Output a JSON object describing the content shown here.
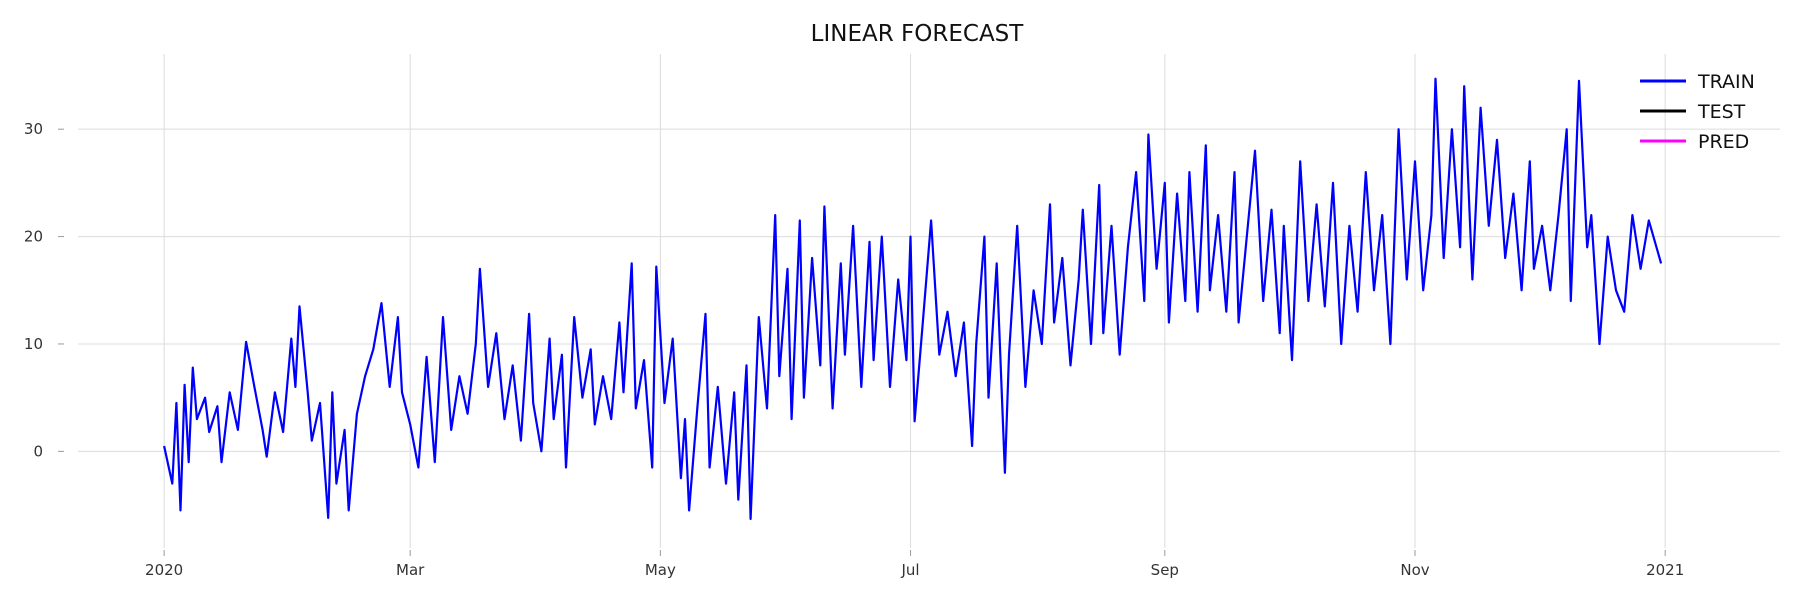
{
  "chart_data": {
    "type": "line",
    "title": "LINEAR FORECAST",
    "xlabel": "",
    "ylabel": "",
    "x_axis": {
      "type": "date",
      "range": [
        "2019-12-11",
        "2021-01-29"
      ],
      "ticks": [
        {
          "date": "2020-01-01",
          "label": "2020"
        },
        {
          "date": "2020-03-01",
          "label": "Mar"
        },
        {
          "date": "2020-05-01",
          "label": "May"
        },
        {
          "date": "2020-07-01",
          "label": "Jul"
        },
        {
          "date": "2020-09-01",
          "label": "Sep"
        },
        {
          "date": "2020-11-01",
          "label": "Nov"
        },
        {
          "date": "2021-01-01",
          "label": "2021"
        }
      ]
    },
    "y_axis": {
      "range": [
        -9,
        37
      ],
      "ticks": [
        0,
        10,
        20,
        30
      ]
    },
    "grid": true,
    "legend": {
      "position": "top-right"
    },
    "series": [
      {
        "name": "TRAIN",
        "color": "#0000ff",
        "points": [
          [
            "2020-01-01",
            0.5
          ],
          [
            "2020-01-03",
            -3
          ],
          [
            "2020-01-04",
            4.5
          ],
          [
            "2020-01-05",
            -5.5
          ],
          [
            "2020-01-06",
            6.2
          ],
          [
            "2020-01-07",
            -1
          ],
          [
            "2020-01-08",
            7.8
          ],
          [
            "2020-01-09",
            3
          ],
          [
            "2020-01-11",
            5
          ],
          [
            "2020-01-12",
            1.8
          ],
          [
            "2020-01-14",
            4.2
          ],
          [
            "2020-01-15",
            -1
          ],
          [
            "2020-01-17",
            5.5
          ],
          [
            "2020-01-19",
            2
          ],
          [
            "2020-01-21",
            10.2
          ],
          [
            "2020-01-23",
            6
          ],
          [
            "2020-01-25",
            2
          ],
          [
            "2020-01-26",
            -0.5
          ],
          [
            "2020-01-28",
            5.5
          ],
          [
            "2020-01-30",
            1.8
          ],
          [
            "2020-02-01",
            10.5
          ],
          [
            "2020-02-02",
            6
          ],
          [
            "2020-02-03",
            13.5
          ],
          [
            "2020-02-05",
            5.5
          ],
          [
            "2020-02-06",
            1
          ],
          [
            "2020-02-08",
            4.5
          ],
          [
            "2020-02-10",
            -6.2
          ],
          [
            "2020-02-11",
            5.5
          ],
          [
            "2020-02-12",
            -3
          ],
          [
            "2020-02-14",
            2
          ],
          [
            "2020-02-15",
            -5.5
          ],
          [
            "2020-02-17",
            3.5
          ],
          [
            "2020-02-19",
            7
          ],
          [
            "2020-02-21",
            9.5
          ],
          [
            "2020-02-23",
            13.8
          ],
          [
            "2020-02-25",
            6
          ],
          [
            "2020-02-27",
            12.5
          ],
          [
            "2020-02-28",
            5.5
          ],
          [
            "2020-03-01",
            2.5
          ],
          [
            "2020-03-03",
            -1.5
          ],
          [
            "2020-03-05",
            8.8
          ],
          [
            "2020-03-07",
            -1
          ],
          [
            "2020-03-09",
            12.5
          ],
          [
            "2020-03-11",
            2
          ],
          [
            "2020-03-13",
            7
          ],
          [
            "2020-03-15",
            3.5
          ],
          [
            "2020-03-17",
            10
          ],
          [
            "2020-03-18",
            17
          ],
          [
            "2020-03-20",
            6
          ],
          [
            "2020-03-22",
            11
          ],
          [
            "2020-03-24",
            3
          ],
          [
            "2020-03-26",
            8
          ],
          [
            "2020-03-28",
            1
          ],
          [
            "2020-03-30",
            12.8
          ],
          [
            "2020-03-31",
            4.5
          ],
          [
            "2020-04-02",
            0
          ],
          [
            "2020-04-04",
            10.5
          ],
          [
            "2020-04-05",
            3
          ],
          [
            "2020-04-07",
            9
          ],
          [
            "2020-04-08",
            -1.5
          ],
          [
            "2020-04-10",
            12.5
          ],
          [
            "2020-04-12",
            5
          ],
          [
            "2020-04-14",
            9.5
          ],
          [
            "2020-04-15",
            2.5
          ],
          [
            "2020-04-17",
            7
          ],
          [
            "2020-04-19",
            3
          ],
          [
            "2020-04-21",
            12
          ],
          [
            "2020-04-22",
            5.5
          ],
          [
            "2020-04-24",
            17.5
          ],
          [
            "2020-04-25",
            4
          ],
          [
            "2020-04-27",
            8.5
          ],
          [
            "2020-04-29",
            -1.5
          ],
          [
            "2020-04-30",
            17.2
          ],
          [
            "2020-05-02",
            4.5
          ],
          [
            "2020-05-04",
            10.5
          ],
          [
            "2020-05-06",
            -2.5
          ],
          [
            "2020-05-07",
            3
          ],
          [
            "2020-05-08",
            -5.5
          ],
          [
            "2020-05-10",
            4
          ],
          [
            "2020-05-12",
            12.8
          ],
          [
            "2020-05-13",
            -1.5
          ],
          [
            "2020-05-15",
            6
          ],
          [
            "2020-05-17",
            -3
          ],
          [
            "2020-05-19",
            5.5
          ],
          [
            "2020-05-20",
            -4.5
          ],
          [
            "2020-05-22",
            8
          ],
          [
            "2020-05-23",
            -6.3
          ],
          [
            "2020-05-25",
            12.5
          ],
          [
            "2020-05-27",
            4
          ],
          [
            "2020-05-29",
            22
          ],
          [
            "2020-05-30",
            7
          ],
          [
            "2020-06-01",
            17
          ],
          [
            "2020-06-02",
            3
          ],
          [
            "2020-06-04",
            21.5
          ],
          [
            "2020-06-05",
            5
          ],
          [
            "2020-06-07",
            18
          ],
          [
            "2020-06-09",
            8
          ],
          [
            "2020-06-10",
            22.8
          ],
          [
            "2020-06-12",
            4
          ],
          [
            "2020-06-14",
            17.5
          ],
          [
            "2020-06-15",
            9
          ],
          [
            "2020-06-17",
            21
          ],
          [
            "2020-06-19",
            6
          ],
          [
            "2020-06-21",
            19.5
          ],
          [
            "2020-06-22",
            8.5
          ],
          [
            "2020-06-24",
            20
          ],
          [
            "2020-06-26",
            6
          ],
          [
            "2020-06-28",
            16
          ],
          [
            "2020-06-30",
            8.5
          ],
          [
            "2020-07-01",
            20
          ],
          [
            "2020-07-02",
            2.8
          ],
          [
            "2020-07-04",
            12
          ],
          [
            "2020-07-06",
            21.5
          ],
          [
            "2020-07-08",
            9
          ],
          [
            "2020-07-10",
            13
          ],
          [
            "2020-07-12",
            7
          ],
          [
            "2020-07-14",
            12
          ],
          [
            "2020-07-16",
            0.5
          ],
          [
            "2020-07-17",
            10
          ],
          [
            "2020-07-19",
            20
          ],
          [
            "2020-07-20",
            5
          ],
          [
            "2020-07-22",
            17.5
          ],
          [
            "2020-07-24",
            -2
          ],
          [
            "2020-07-25",
            9
          ],
          [
            "2020-07-27",
            21
          ],
          [
            "2020-07-29",
            6
          ],
          [
            "2020-07-31",
            15
          ],
          [
            "2020-08-02",
            10
          ],
          [
            "2020-08-04",
            23
          ],
          [
            "2020-08-05",
            12
          ],
          [
            "2020-08-07",
            18
          ],
          [
            "2020-08-09",
            8
          ],
          [
            "2020-08-11",
            16
          ],
          [
            "2020-08-12",
            22.5
          ],
          [
            "2020-08-14",
            10
          ],
          [
            "2020-08-16",
            24.8
          ],
          [
            "2020-08-17",
            11
          ],
          [
            "2020-08-19",
            21
          ],
          [
            "2020-08-21",
            9
          ],
          [
            "2020-08-23",
            19
          ],
          [
            "2020-08-25",
            26
          ],
          [
            "2020-08-27",
            14
          ],
          [
            "2020-08-28",
            29.5
          ],
          [
            "2020-08-30",
            17
          ],
          [
            "2020-09-01",
            25
          ],
          [
            "2020-09-02",
            12
          ],
          [
            "2020-09-04",
            24
          ],
          [
            "2020-09-06",
            14
          ],
          [
            "2020-09-07",
            26
          ],
          [
            "2020-09-09",
            13
          ],
          [
            "2020-09-11",
            28.5
          ],
          [
            "2020-09-12",
            15
          ],
          [
            "2020-09-14",
            22
          ],
          [
            "2020-09-16",
            13
          ],
          [
            "2020-09-18",
            26
          ],
          [
            "2020-09-19",
            12
          ],
          [
            "2020-09-21",
            20
          ],
          [
            "2020-09-23",
            28
          ],
          [
            "2020-09-25",
            14
          ],
          [
            "2020-09-27",
            22.5
          ],
          [
            "2020-09-29",
            11
          ],
          [
            "2020-09-30",
            21
          ],
          [
            "2020-10-02",
            8.5
          ],
          [
            "2020-10-04",
            27
          ],
          [
            "2020-10-06",
            14
          ],
          [
            "2020-10-08",
            23
          ],
          [
            "2020-10-10",
            13.5
          ],
          [
            "2020-10-12",
            25
          ],
          [
            "2020-10-14",
            10
          ],
          [
            "2020-10-16",
            21
          ],
          [
            "2020-10-18",
            13
          ],
          [
            "2020-10-20",
            26
          ],
          [
            "2020-10-22",
            15
          ],
          [
            "2020-10-24",
            22
          ],
          [
            "2020-10-26",
            10
          ],
          [
            "2020-10-28",
            30
          ],
          [
            "2020-10-30",
            16
          ],
          [
            "2020-11-01",
            27
          ],
          [
            "2020-11-03",
            15
          ],
          [
            "2020-11-05",
            22
          ],
          [
            "2020-11-06",
            34.7
          ],
          [
            "2020-11-08",
            18
          ],
          [
            "2020-11-10",
            30
          ],
          [
            "2020-11-12",
            19
          ],
          [
            "2020-11-13",
            34
          ],
          [
            "2020-11-15",
            16
          ],
          [
            "2020-11-17",
            32
          ],
          [
            "2020-11-19",
            21
          ],
          [
            "2020-11-21",
            29
          ],
          [
            "2020-11-23",
            18
          ],
          [
            "2020-11-25",
            24
          ],
          [
            "2020-11-27",
            15
          ],
          [
            "2020-11-29",
            27
          ],
          [
            "2020-11-30",
            17
          ],
          [
            "2020-12-02",
            21
          ],
          [
            "2020-12-04",
            15
          ],
          [
            "2020-12-06",
            22
          ],
          [
            "2020-12-08",
            30
          ],
          [
            "2020-12-09",
            14
          ],
          [
            "2020-12-11",
            34.5
          ],
          [
            "2020-12-13",
            19
          ],
          [
            "2020-12-14",
            22
          ],
          [
            "2020-12-16",
            10
          ],
          [
            "2020-12-18",
            20
          ],
          [
            "2020-12-20",
            15
          ],
          [
            "2020-12-22",
            13
          ],
          [
            "2020-12-24",
            22
          ],
          [
            "2020-12-26",
            17
          ],
          [
            "2020-12-28",
            21.5
          ],
          [
            "2020-12-31",
            17.5
          ]
        ]
      },
      {
        "name": "TEST",
        "color": "#000000",
        "points": []
      },
      {
        "name": "PRED",
        "color": "#ff00ff",
        "points": []
      }
    ]
  }
}
